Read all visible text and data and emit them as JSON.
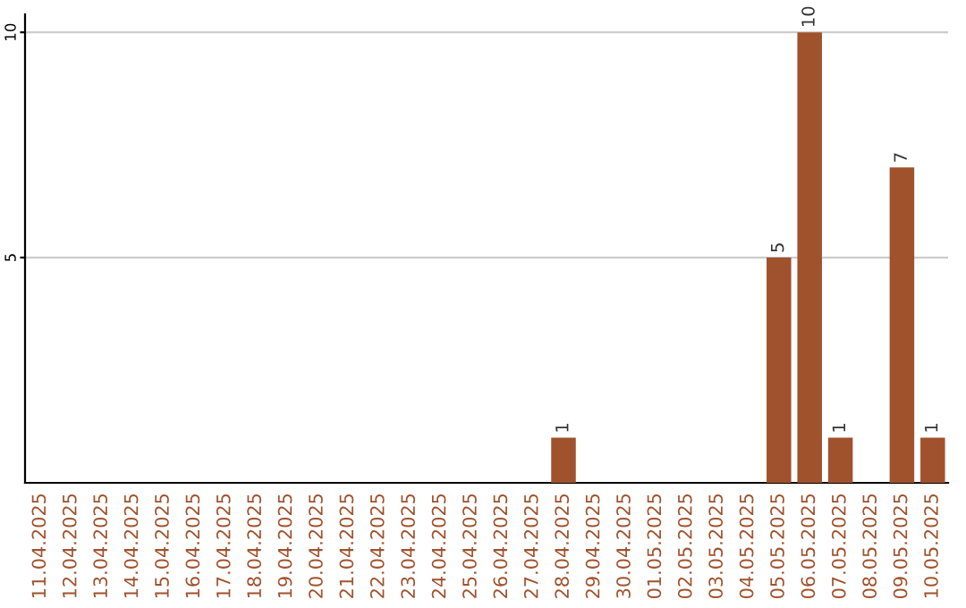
{
  "chart_data": {
    "type": "bar",
    "categories": [
      "11.04.2025",
      "12.04.2025",
      "13.04.2025",
      "14.04.2025",
      "15.04.2025",
      "16.04.2025",
      "17.04.2025",
      "18.04.2025",
      "19.04.2025",
      "20.04.2025",
      "21.04.2025",
      "22.04.2025",
      "23.04.2025",
      "24.04.2025",
      "25.04.2025",
      "26.04.2025",
      "27.04.2025",
      "28.04.2025",
      "29.04.2025",
      "30.04.2025",
      "01.05.2025",
      "02.05.2025",
      "03.05.2025",
      "04.05.2025",
      "05.05.2025",
      "06.05.2025",
      "07.05.2025",
      "08.05.2025",
      "09.05.2025",
      "10.05.2025"
    ],
    "values": [
      0,
      0,
      0,
      0,
      0,
      0,
      0,
      0,
      0,
      0,
      0,
      0,
      0,
      0,
      0,
      0,
      0,
      1,
      0,
      0,
      0,
      0,
      0,
      0,
      5,
      10,
      1,
      0,
      7,
      1
    ],
    "color": "#a0522d",
    "ylim": [
      0,
      10.4
    ],
    "yticks": [
      5,
      10
    ],
    "grid": "y",
    "value_labels": [
      null,
      null,
      null,
      null,
      null,
      null,
      null,
      null,
      null,
      null,
      null,
      null,
      null,
      null,
      null,
      null,
      null,
      "1",
      null,
      null,
      null,
      null,
      null,
      null,
      "5",
      "10",
      "1",
      null,
      "7",
      "1"
    ]
  }
}
